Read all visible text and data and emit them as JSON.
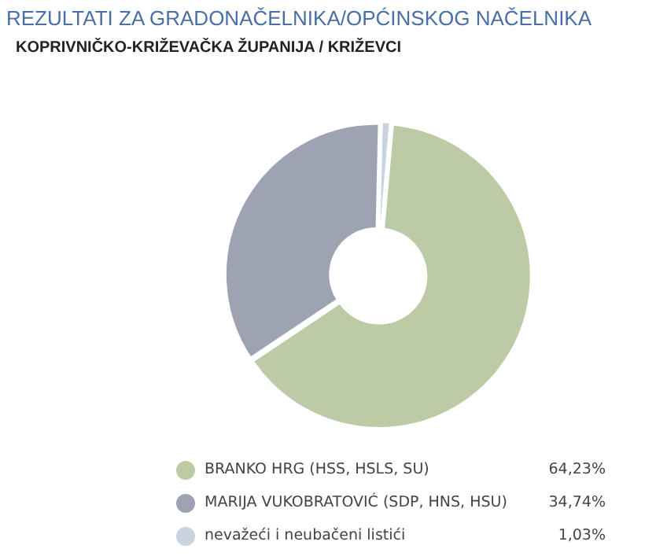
{
  "chart_data": {
    "type": "donut",
    "title": "REZULTATI ZA GRADONAČELNIKA/OPĆINSKOG NAČELNIKA",
    "subtitle": "KOPRIVNIČKO-KRIŽEVAČKA ŽUPANIJA  / KRIŽEVCI",
    "categories": [
      "BRANKO HRG (HSS, HSLS, SU)",
      "MARIJA VUKOBRATOVIĆ (SDP, HNS, HSU)",
      "nevažeći i neubačeni listići"
    ],
    "values": [
      64.23,
      34.74,
      1.03
    ],
    "value_labels": [
      "64,23%",
      "34,74%",
      "1,03%"
    ],
    "colors": [
      "#bccba6",
      "#9ea3b3",
      "#c9d3df"
    ],
    "legend": "bottom"
  }
}
